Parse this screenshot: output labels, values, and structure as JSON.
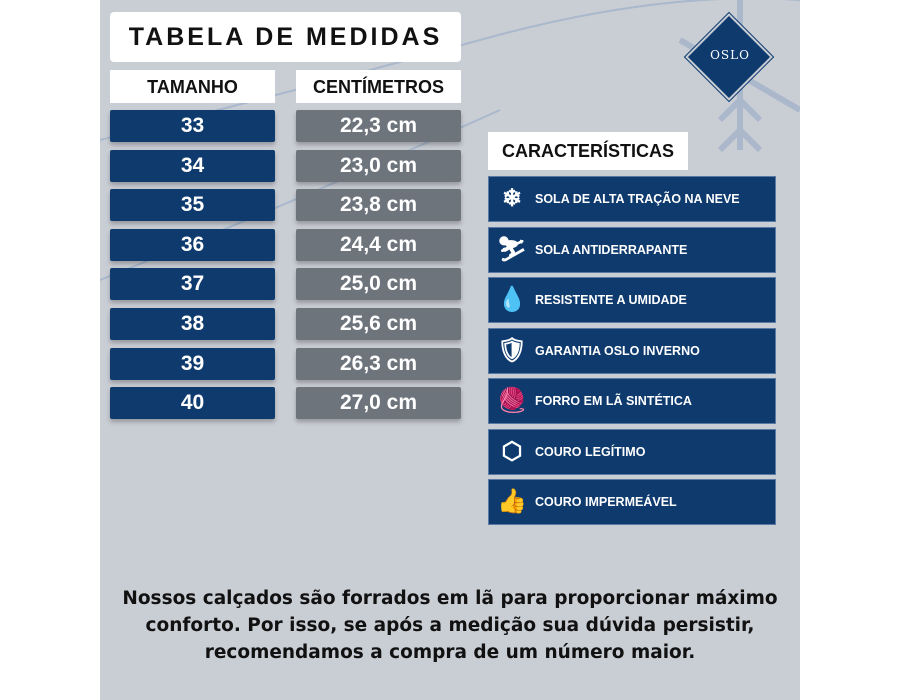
{
  "title": "TABELA DE MEDIDAS",
  "headers": {
    "size": "TAMANHO",
    "cm": "CENTÍMETROS"
  },
  "rows": [
    {
      "size": "33",
      "cm": "22,3 cm"
    },
    {
      "size": "34",
      "cm": "23,0 cm"
    },
    {
      "size": "35",
      "cm": "23,8 cm"
    },
    {
      "size": "36",
      "cm": "24,4 cm"
    },
    {
      "size": "37",
      "cm": "25,0 cm"
    },
    {
      "size": "38",
      "cm": "25,6 cm"
    },
    {
      "size": "39",
      "cm": "26,3 cm"
    },
    {
      "size": "40",
      "cm": "27,0 cm"
    }
  ],
  "brand": "OSLO",
  "features_title": "CARACTERÍSTICAS",
  "features": [
    {
      "label": "SOLA DE ALTA TRAÇÃO NA NEVE",
      "icon": "snow-sole-icon",
      "glyph": "❄"
    },
    {
      "label": "SOLA ANTIDERRAPANTE",
      "icon": "slip-icon",
      "glyph": "⛷"
    },
    {
      "label": "RESISTENTE A UMIDADE",
      "icon": "water-drop-icon",
      "glyph": "💧"
    },
    {
      "label": "GARANTIA OSLO INVERNO",
      "icon": "shield-check-icon",
      "glyph": "🛡"
    },
    {
      "label": "FORRO EM LÃ SINTÉTICA",
      "icon": "yarn-ball-icon",
      "glyph": "🧶"
    },
    {
      "label": "COURO LEGÍTIMO",
      "icon": "leather-hide-icon",
      "glyph": "⬡"
    },
    {
      "label": "COURO IMPERMEÁVEL",
      "icon": "drop-thumbs-up-icon",
      "glyph": "👍"
    }
  ],
  "note": "Nossos calçados são forrados em lã para proporcionar máximo conforto. Por isso, se após a medição sua dúvida persistir, recomendamos a compra de um número maior.",
  "colors": {
    "navy": "#0e3a6e",
    "gray": "#6d747c",
    "background": "#c9cdd4"
  }
}
